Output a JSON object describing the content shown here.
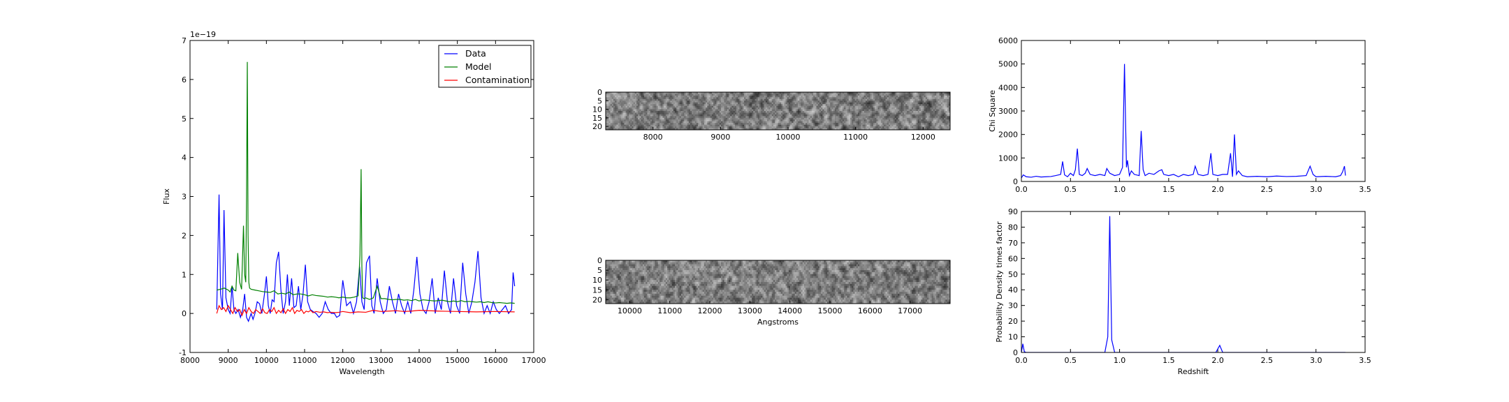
{
  "chart_data": [
    {
      "id": "spectrum",
      "type": "line",
      "xlabel": "Wavelength",
      "ylabel": "Flux",
      "xlim": [
        8000,
        17000
      ],
      "ylim": [
        -1,
        7
      ],
      "xticks": [
        8000,
        9000,
        10000,
        11000,
        12000,
        13000,
        14000,
        15000,
        16000,
        17000
      ],
      "yticks": [
        -1,
        0,
        1,
        2,
        3,
        4,
        5,
        6,
        7
      ],
      "y_scale_note": "1e−19",
      "legend_position": "top-right",
      "series": [
        {
          "name": "Data",
          "color": "#0000ff",
          "x": [
            8700,
            8760,
            8800,
            8850,
            8890,
            8940,
            9000,
            9050,
            9100,
            9150,
            9200,
            9260,
            9320,
            9380,
            9430,
            9480,
            9530,
            9600,
            9650,
            9700,
            9760,
            9820,
            9880,
            9950,
            10000,
            10050,
            10100,
            10150,
            10200,
            10260,
            10320,
            10380,
            10440,
            10500,
            10550,
            10600,
            10660,
            10720,
            10780,
            10840,
            10900,
            10960,
            11020,
            11080,
            11150,
            11220,
            11300,
            11380,
            11460,
            11540,
            11620,
            11700,
            11780,
            11840,
            11920,
            12000,
            12100,
            12200,
            12280,
            12360,
            12440,
            12500,
            12560,
            12620,
            12700,
            12760,
            12820,
            12900,
            12980,
            13060,
            13140,
            13220,
            13300,
            13380,
            13460,
            13540,
            13620,
            13700,
            13780,
            13860,
            13940,
            14020,
            14100,
            14180,
            14260,
            14340,
            14420,
            14500,
            14580,
            14660,
            14740,
            14820,
            14900,
            14980,
            15060,
            15140,
            15220,
            15300,
            15380,
            15460,
            15540,
            15620,
            15700,
            15780,
            15860,
            15940,
            16020,
            16100,
            16180,
            16260,
            16340,
            16420,
            16460,
            16500
          ],
          "values": [
            0.1,
            3.05,
            0.5,
            0.1,
            2.65,
            0.4,
            0.1,
            0.0,
            0.7,
            0.1,
            0.0,
            0.1,
            -0.1,
            0.1,
            0.5,
            -0.1,
            -0.2,
            0.0,
            -0.15,
            0.0,
            0.3,
            0.25,
            0.0,
            0.5,
            0.95,
            0.2,
            0.0,
            0.35,
            0.3,
            1.3,
            1.58,
            0.6,
            0.0,
            0.3,
            1.0,
            0.2,
            0.9,
            0.15,
            0.2,
            0.7,
            0.1,
            0.5,
            1.25,
            0.3,
            0.1,
            0.05,
            0.0,
            -0.1,
            0.0,
            0.3,
            0.1,
            0.0,
            0.0,
            -0.1,
            -0.05,
            0.85,
            0.2,
            0.3,
            0.0,
            0.3,
            1.2,
            0.3,
            0.1,
            1.3,
            1.48,
            0.2,
            0.0,
            0.9,
            0.3,
            0.0,
            0.1,
            0.7,
            0.3,
            0.0,
            0.5,
            0.2,
            0.0,
            0.3,
            0.0,
            0.6,
            1.45,
            0.5,
            0.1,
            0.0,
            0.3,
            0.9,
            0.0,
            0.4,
            0.1,
            1.1,
            0.3,
            0.0,
            0.9,
            0.2,
            0.0,
            1.3,
            0.5,
            0.0,
            0.3,
            0.8,
            1.6,
            0.4,
            0.0,
            0.2,
            0.0,
            0.3,
            0.1,
            0.0,
            0.1,
            0.2,
            0.0,
            0.1,
            1.05,
            0.7
          ]
        },
        {
          "name": "Model",
          "color": "#008000",
          "x": [
            8700,
            8800,
            8900,
            9000,
            9050,
            9100,
            9150,
            9200,
            9250,
            9300,
            9350,
            9400,
            9430,
            9460,
            9480,
            9500,
            9520,
            9540,
            9560,
            9600,
            9700,
            9800,
            9900,
            10000,
            10100,
            10200,
            10300,
            10400,
            10500,
            10600,
            10700,
            10800,
            10900,
            11000,
            11100,
            11200,
            11300,
            11400,
            11500,
            11600,
            11700,
            11800,
            11900,
            12000,
            12100,
            12200,
            12300,
            12400,
            12450,
            12480,
            12500,
            12520,
            12560,
            12600,
            12700,
            12800,
            12900,
            13000,
            13100,
            13200,
            13300,
            13400,
            13500,
            13600,
            13700,
            13800,
            13900,
            14000,
            14100,
            14200,
            14300,
            14400,
            14500,
            14600,
            14700,
            14800,
            14900,
            15000,
            15100,
            15200,
            15300,
            15400,
            15500,
            15600,
            15700,
            15800,
            15900,
            16000,
            16100,
            16200,
            16300,
            16400,
            16500
          ],
          "values": [
            0.6,
            0.62,
            0.65,
            0.6,
            0.55,
            0.7,
            0.6,
            0.58,
            1.55,
            0.8,
            0.62,
            2.25,
            1.0,
            0.8,
            3.0,
            6.45,
            2.0,
            0.8,
            0.65,
            0.62,
            0.6,
            0.58,
            0.56,
            0.55,
            0.54,
            0.58,
            0.5,
            0.52,
            0.5,
            0.55,
            0.48,
            0.5,
            0.5,
            0.48,
            0.45,
            0.48,
            0.46,
            0.45,
            0.44,
            0.42,
            0.43,
            0.42,
            0.4,
            0.42,
            0.4,
            0.4,
            0.42,
            0.45,
            1.5,
            3.7,
            1.2,
            0.4,
            0.38,
            0.4,
            0.36,
            0.4,
            0.7,
            0.38,
            0.38,
            0.36,
            0.35,
            0.36,
            0.36,
            0.34,
            0.35,
            0.33,
            0.36,
            0.32,
            0.35,
            0.34,
            0.33,
            0.32,
            0.33,
            0.34,
            0.32,
            0.3,
            0.32,
            0.3,
            0.33,
            0.3,
            0.31,
            0.3,
            0.29,
            0.3,
            0.28,
            0.3,
            0.28,
            0.27,
            0.28,
            0.27,
            0.26,
            0.27,
            0.26
          ]
        },
        {
          "name": "Contamination",
          "color": "#ff0000",
          "x": [
            8700,
            8760,
            8820,
            8880,
            8940,
            9000,
            9060,
            9120,
            9180,
            9240,
            9300,
            9360,
            9420,
            9480,
            9540,
            9600,
            9660,
            9720,
            9780,
            9840,
            9900,
            9960,
            10020,
            10080,
            10140,
            10200,
            10260,
            10320,
            10380,
            10440,
            10500,
            10560,
            10620,
            10680,
            10740,
            10800,
            10860,
            10920,
            10980,
            11040,
            11100,
            11160,
            11220,
            11300,
            11400,
            11500,
            11600,
            11700,
            11800,
            11900,
            12000,
            12200,
            12400,
            12600,
            12800,
            13000,
            13200,
            13400,
            13600,
            13800,
            14000,
            14500,
            15000,
            15500,
            16000,
            16500
          ],
          "values": [
            0.0,
            0.2,
            0.1,
            0.15,
            0.05,
            0.2,
            0.1,
            0.0,
            0.15,
            0.05,
            0.1,
            -0.05,
            0.1,
            0.0,
            0.15,
            0.05,
            0.0,
            0.1,
            0.05,
            0.0,
            0.12,
            0.02,
            0.0,
            0.1,
            0.05,
            0.15,
            0.0,
            0.08,
            0.02,
            0.12,
            0.0,
            0.1,
            0.05,
            0.15,
            0.0,
            0.08,
            0.05,
            0.1,
            0.0,
            0.06,
            0.04,
            0.08,
            0.02,
            0.05,
            0.03,
            0.04,
            0.02,
            0.03,
            0.02,
            0.03,
            0.05,
            0.02,
            0.04,
            0.03,
            0.08,
            0.05,
            0.06,
            0.07,
            0.05,
            0.06,
            0.08,
            0.06,
            0.05,
            0.04,
            0.05,
            0.04
          ]
        }
      ]
    },
    {
      "id": "image1",
      "type": "heatmap",
      "colormap": "gray",
      "xlim": [
        7300,
        12400
      ],
      "ylim": [
        22,
        0
      ],
      "xticks": [
        8000,
        9000,
        10000,
        11000,
        12000
      ],
      "yticks": [
        0,
        5,
        10,
        15,
        20
      ],
      "xlabel": ""
    },
    {
      "id": "image2",
      "type": "heatmap",
      "colormap": "gray",
      "xlim": [
        9400,
        18000
      ],
      "ylim": [
        22,
        0
      ],
      "xticks": [
        10000,
        11000,
        12000,
        13000,
        14000,
        15000,
        16000,
        17000
      ],
      "yticks": [
        0,
        5,
        10,
        15,
        20
      ],
      "xlabel": "Angstroms"
    },
    {
      "id": "chisq",
      "type": "line",
      "xlabel": "",
      "ylabel": "Chi Square",
      "xlim": [
        0.0,
        3.5
      ],
      "ylim": [
        0,
        6000
      ],
      "xticks": [
        0.0,
        0.5,
        1.0,
        1.5,
        2.0,
        2.5,
        3.0,
        3.5
      ],
      "yticks": [
        0,
        1000,
        2000,
        3000,
        4000,
        5000,
        6000
      ],
      "series": [
        {
          "color": "#0000ff",
          "x": [
            0.0,
            0.02,
            0.05,
            0.1,
            0.15,
            0.2,
            0.25,
            0.3,
            0.35,
            0.4,
            0.42,
            0.44,
            0.47,
            0.5,
            0.53,
            0.55,
            0.57,
            0.59,
            0.62,
            0.65,
            0.67,
            0.7,
            0.75,
            0.8,
            0.85,
            0.87,
            0.9,
            0.95,
            1.0,
            1.03,
            1.05,
            1.07,
            1.08,
            1.1,
            1.12,
            1.15,
            1.2,
            1.22,
            1.24,
            1.26,
            1.3,
            1.35,
            1.4,
            1.43,
            1.45,
            1.5,
            1.55,
            1.6,
            1.65,
            1.7,
            1.75,
            1.77,
            1.8,
            1.85,
            1.9,
            1.93,
            1.95,
            2.0,
            2.05,
            2.1,
            2.13,
            2.15,
            2.17,
            2.19,
            2.21,
            2.25,
            2.3,
            2.4,
            2.5,
            2.6,
            2.7,
            2.8,
            2.9,
            2.94,
            2.97,
            3.0,
            3.1,
            3.2,
            3.25,
            3.27,
            3.29,
            3.3
          ],
          "values": [
            150,
            280,
            200,
            180,
            220,
            190,
            200,
            210,
            250,
            300,
            850,
            280,
            200,
            350,
            250,
            500,
            1400,
            300,
            250,
            350,
            550,
            300,
            250,
            300,
            250,
            550,
            350,
            250,
            300,
            600,
            5000,
            600,
            900,
            250,
            450,
            300,
            250,
            2150,
            500,
            250,
            350,
            300,
            450,
            500,
            300,
            250,
            300,
            200,
            300,
            250,
            300,
            650,
            300,
            250,
            300,
            1200,
            300,
            250,
            300,
            300,
            1200,
            200,
            2000,
            300,
            450,
            250,
            200,
            220,
            200,
            230,
            210,
            220,
            250,
            650,
            300,
            200,
            220,
            200,
            250,
            400,
            650,
            250
          ]
        }
      ]
    },
    {
      "id": "pdf",
      "type": "line",
      "xlabel": "Redshift",
      "ylabel": "Probability Density times factor",
      "xlim": [
        0.0,
        3.5
      ],
      "ylim": [
        0,
        90
      ],
      "xticks": [
        0.0,
        0.5,
        1.0,
        1.5,
        2.0,
        2.5,
        3.0,
        3.5
      ],
      "yticks": [
        0,
        10,
        20,
        30,
        40,
        50,
        60,
        70,
        80,
        90
      ],
      "series": [
        {
          "color": "#0000ff",
          "x": [
            0.0,
            0.015,
            0.03,
            0.05,
            0.1,
            0.5,
            0.85,
            0.88,
            0.9,
            0.92,
            0.95,
            1.5,
            1.98,
            2.02,
            2.05,
            2.1,
            2.5,
            3.0,
            3.3
          ],
          "values": [
            0,
            5.5,
            0.5,
            0,
            0,
            0,
            0,
            10,
            87,
            8,
            0,
            0,
            0,
            4.5,
            0,
            0,
            0,
            0,
            0
          ]
        }
      ]
    }
  ]
}
